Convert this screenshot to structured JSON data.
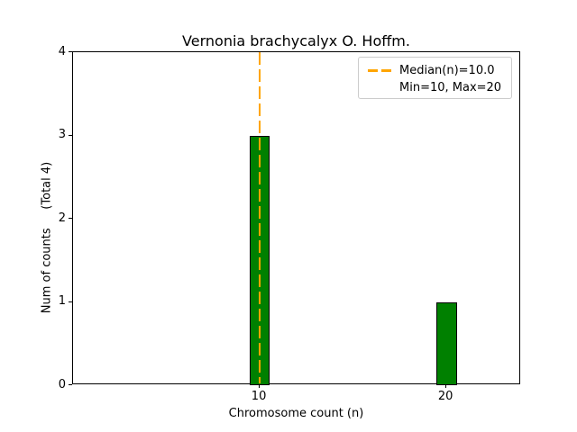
{
  "chart_data": {
    "type": "bar",
    "title": "Vernonia brachycalyx O. Hoffm.",
    "xlabel": "Chromosome count (n)",
    "ylabel": "Num of counts     (Total 4)",
    "categories": [
      10,
      20
    ],
    "values": [
      3,
      1
    ],
    "bar_width_units": 1.1,
    "xlim": [
      0,
      24
    ],
    "ylim": [
      0,
      4
    ],
    "xticks": [
      10,
      20
    ],
    "xtick_labels": [
      "10",
      "20"
    ],
    "yticks": [
      0,
      1,
      2,
      3,
      4
    ],
    "ytick_labels": [
      "0",
      "1",
      "2",
      "3",
      "4"
    ],
    "grid": false,
    "median_line": {
      "x": 10.0,
      "style": "dashed",
      "color": "#FFA500"
    },
    "colors": {
      "bar_fill": "#008000",
      "bar_edge": "#000000",
      "median": "#FFA500",
      "legend_border": "#cccccc",
      "text": "#000000"
    },
    "legend": {
      "position": "upper right",
      "entries": [
        {
          "label": "Median(n)=10.0",
          "swatch": "orange-dashed-line"
        },
        {
          "label": "Min=10, Max=20",
          "swatch": "none"
        }
      ]
    }
  }
}
